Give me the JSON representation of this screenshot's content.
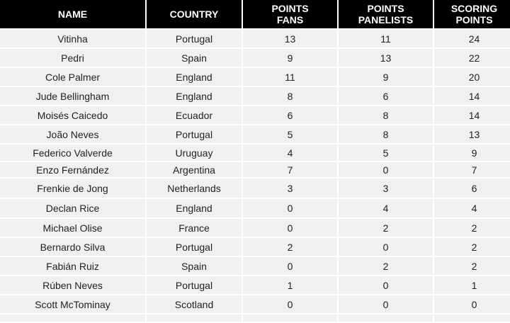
{
  "headers": [
    "NAME",
    "COUNTRY",
    "POINTS\nFANS",
    "POINTS\nPANELISTS",
    "SCORING\nPOINTS"
  ],
  "rows": [
    [
      "Vitinha",
      "Portugal",
      "13",
      "11",
      "24"
    ],
    [
      "Pedri",
      "Spain",
      "9",
      "13",
      "22"
    ],
    [
      "Cole Palmer",
      "England",
      "11",
      "9",
      "20"
    ],
    [
      "Jude Bellingham",
      "England",
      "8",
      "6",
      "14"
    ],
    [
      "Moisés Caicedo",
      "Ecuador",
      "6",
      "8",
      "14"
    ],
    [
      "João Neves",
      "Portugal",
      "5",
      "8",
      "13"
    ],
    [
      "Federico Valverde",
      "Uruguay",
      "4",
      "5",
      "9"
    ],
    [
      "Enzo Fernández",
      "Argentina",
      "7",
      "0",
      "7"
    ],
    [
      "Frenkie de Jong",
      "Netherlands",
      "3",
      "3",
      "6"
    ],
    [
      "Declan Rice",
      "England",
      "0",
      "4",
      "4"
    ],
    [
      "Michael Olise",
      "France",
      "0",
      "2",
      "2"
    ],
    [
      "Bernardo Silva",
      "Portugal",
      "2",
      "0",
      "2"
    ],
    [
      "Fabián Ruiz",
      "Spain",
      "0",
      "2",
      "2"
    ],
    [
      "Rúben Neves",
      "Portugal",
      "1",
      "0",
      "1"
    ],
    [
      "Scott McTominay",
      "Scotland",
      "0",
      "0",
      "0"
    ]
  ]
}
